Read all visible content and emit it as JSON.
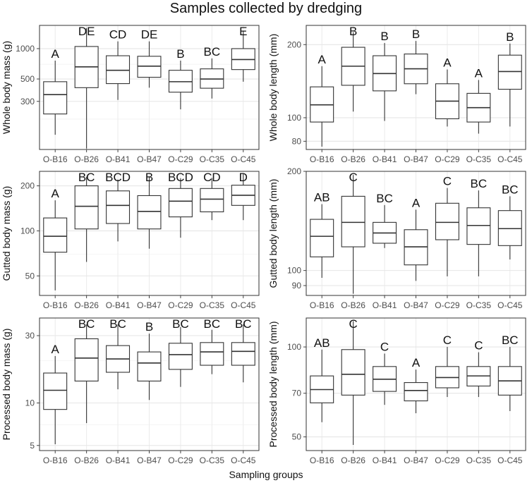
{
  "figure": {
    "title": "Samples collected by dredging",
    "xlabel": "Sampling groups"
  },
  "chart_data": [
    {
      "type": "box",
      "panel": "top-left",
      "ylabel": "Whole body mass (g)",
      "log_scale": true,
      "ylim": [
        100,
        1700
      ],
      "yticks": [
        300,
        500,
        1000
      ],
      "categories": [
        "O-B16",
        "O-B26",
        "O-B41",
        "O-B47",
        "O-C29",
        "O-C35",
        "O-C45"
      ],
      "letters": [
        "A",
        "DE",
        "CD",
        "DE",
        "B",
        "BC",
        "E"
      ],
      "boxes": [
        {
          "low": 140,
          "q1": 225,
          "median": 350,
          "q3": 470,
          "high": 760
        },
        {
          "low": 102,
          "q1": 410,
          "median": 660,
          "q3": 1050,
          "high": 1600
        },
        {
          "low": 310,
          "q1": 450,
          "median": 610,
          "q3": 850,
          "high": 1180
        },
        {
          "low": 410,
          "q1": 520,
          "median": 670,
          "q3": 840,
          "high": 1180
        },
        {
          "low": 250,
          "q1": 370,
          "median": 470,
          "q3": 610,
          "high": 760
        },
        {
          "low": 320,
          "q1": 405,
          "median": 500,
          "q3": 630,
          "high": 800
        },
        {
          "low": 470,
          "q1": 620,
          "median": 780,
          "q3": 1000,
          "high": 1500
        }
      ]
    },
    {
      "type": "box",
      "panel": "top-right",
      "ylabel": "Whole body length (mm)",
      "log_scale": true,
      "ylim": [
        74,
        240
      ],
      "yticks": [
        80,
        100,
        200
      ],
      "categories": [
        "O-B16",
        "O-B26",
        "O-B41",
        "O-B47",
        "O-C29",
        "O-C35",
        "O-C45"
      ],
      "letters": [
        "A",
        "B",
        "B",
        "B",
        "A",
        "A",
        "B"
      ],
      "boxes": [
        {
          "low": 76,
          "q1": 96,
          "median": 113,
          "q3": 134,
          "high": 163
        },
        {
          "low": 106,
          "q1": 136,
          "median": 163,
          "q3": 195,
          "high": 225
        },
        {
          "low": 97,
          "q1": 129,
          "median": 152,
          "q3": 180,
          "high": 203
        },
        {
          "low": 125,
          "q1": 138,
          "median": 159,
          "q3": 183,
          "high": 207
        },
        {
          "low": 92,
          "q1": 99,
          "median": 117,
          "q3": 138,
          "high": 158
        },
        {
          "low": 86,
          "q1": 96,
          "median": 110,
          "q3": 126,
          "high": 143
        },
        {
          "low": 92,
          "q1": 131,
          "median": 155,
          "q3": 181,
          "high": 202
        }
      ]
    },
    {
      "type": "box",
      "panel": "middle-left",
      "ylabel": "Gutted body mass (g)",
      "log_scale": true,
      "ylim": [
        37,
        250
      ],
      "yticks": [
        50,
        100,
        200
      ],
      "categories": [
        "O-B16",
        "O-B26",
        "O-B41",
        "O-B47",
        "O-C29",
        "O-C35",
        "O-C45"
      ],
      "letters": [
        "A",
        "BC",
        "BCD",
        "B",
        "BCD",
        "CD",
        "D"
      ],
      "boxes": [
        {
          "low": 40,
          "q1": 72,
          "median": 92,
          "q3": 122,
          "high": 160
        },
        {
          "low": 62,
          "q1": 103,
          "median": 146,
          "q3": 200,
          "high": 230
        },
        {
          "low": 85,
          "q1": 112,
          "median": 148,
          "q3": 185,
          "high": 220
        },
        {
          "low": 76,
          "q1": 103,
          "median": 135,
          "q3": 172,
          "high": 230
        },
        {
          "low": 90,
          "q1": 124,
          "median": 158,
          "q3": 192,
          "high": 225
        },
        {
          "low": 118,
          "q1": 134,
          "median": 163,
          "q3": 192,
          "high": 226
        },
        {
          "low": 118,
          "q1": 148,
          "median": 173,
          "q3": 202,
          "high": 240
        }
      ]
    },
    {
      "type": "box",
      "panel": "middle-right",
      "ylabel": "Gutted body length (mm)",
      "log_scale": true,
      "ylim": [
        84,
        200
      ],
      "yticks": [
        90,
        100,
        200
      ],
      "categories": [
        "O-B16",
        "O-B26",
        "O-B41",
        "O-B47",
        "O-C29",
        "O-C35",
        "O-C45"
      ],
      "letters": [
        "AB",
        "C",
        "BC",
        "A",
        "C",
        "BC",
        "BC"
      ],
      "boxes": [
        {
          "low": 95,
          "q1": 110,
          "median": 127,
          "q3": 143,
          "high": 159
        },
        {
          "low": 85,
          "q1": 118,
          "median": 140,
          "q3": 168,
          "high": 195
        },
        {
          "low": 117,
          "q1": 121,
          "median": 130,
          "q3": 140,
          "high": 158
        },
        {
          "low": 93,
          "q1": 104,
          "median": 118,
          "q3": 133,
          "high": 153
        },
        {
          "low": 96,
          "q1": 124,
          "median": 140,
          "q3": 160,
          "high": 178
        },
        {
          "low": 96,
          "q1": 120,
          "median": 137,
          "q3": 155,
          "high": 175
        },
        {
          "low": 108,
          "q1": 119,
          "median": 134,
          "q3": 152,
          "high": 168
        }
      ]
    },
    {
      "type": "box",
      "panel": "bottom-left",
      "ylabel": "Processed body mass (g)",
      "log_scale": true,
      "ylim": [
        4.6,
        40
      ],
      "yticks": [
        5,
        10,
        30
      ],
      "categories": [
        "O-B16",
        "O-B26",
        "O-B41",
        "O-B47",
        "O-C29",
        "O-C35",
        "O-C45"
      ],
      "letters": [
        "A",
        "BC",
        "BC",
        "B",
        "BC",
        "BC",
        "BC"
      ],
      "boxes": [
        {
          "low": 5.1,
          "q1": 9.0,
          "median": 12.3,
          "q3": 16.3,
          "high": 21.5
        },
        {
          "low": 7.2,
          "q1": 14.3,
          "median": 20.8,
          "q3": 28.5,
          "high": 36.0
        },
        {
          "low": 12.5,
          "q1": 16.5,
          "median": 20.5,
          "q3": 25.5,
          "high": 36.0
        },
        {
          "low": 10.5,
          "q1": 14.3,
          "median": 19.2,
          "q3": 23.0,
          "high": 31.0
        },
        {
          "low": 13.0,
          "q1": 17.3,
          "median": 22.0,
          "q3": 26.5,
          "high": 34.5
        },
        {
          "low": 16.0,
          "q1": 18.5,
          "median": 23.0,
          "q3": 26.8,
          "high": 33.0
        },
        {
          "low": 14.0,
          "q1": 18.5,
          "median": 23.2,
          "q3": 26.8,
          "high": 36.0
        }
      ]
    },
    {
      "type": "box",
      "panel": "bottom-right",
      "ylabel": "Processed body length (mm)",
      "log_scale": true,
      "ylim": [
        45,
        125
      ],
      "yticks": [
        50,
        70,
        100
      ],
      "categories": [
        "O-B16",
        "O-B26",
        "O-B41",
        "O-B47",
        "O-C29",
        "O-C35",
        "O-C45"
      ],
      "letters": [
        "AB",
        "C",
        "C",
        "A",
        "C",
        "C",
        "BC"
      ],
      "boxes": [
        {
          "low": 56,
          "q1": 65,
          "median": 72,
          "q3": 80,
          "high": 98
        },
        {
          "low": 47,
          "q1": 69,
          "median": 81,
          "q3": 98,
          "high": 122
        },
        {
          "low": 64,
          "q1": 71,
          "median": 78,
          "q3": 86,
          "high": 95
        },
        {
          "low": 60,
          "q1": 66,
          "median": 71.5,
          "q3": 76,
          "high": 84
        },
        {
          "low": 68,
          "q1": 73,
          "median": 79,
          "q3": 86,
          "high": 100
        },
        {
          "low": 68,
          "q1": 74,
          "median": 80,
          "q3": 86,
          "high": 96
        },
        {
          "low": 61,
          "q1": 69,
          "median": 77,
          "q3": 86,
          "high": 100
        }
      ]
    }
  ]
}
